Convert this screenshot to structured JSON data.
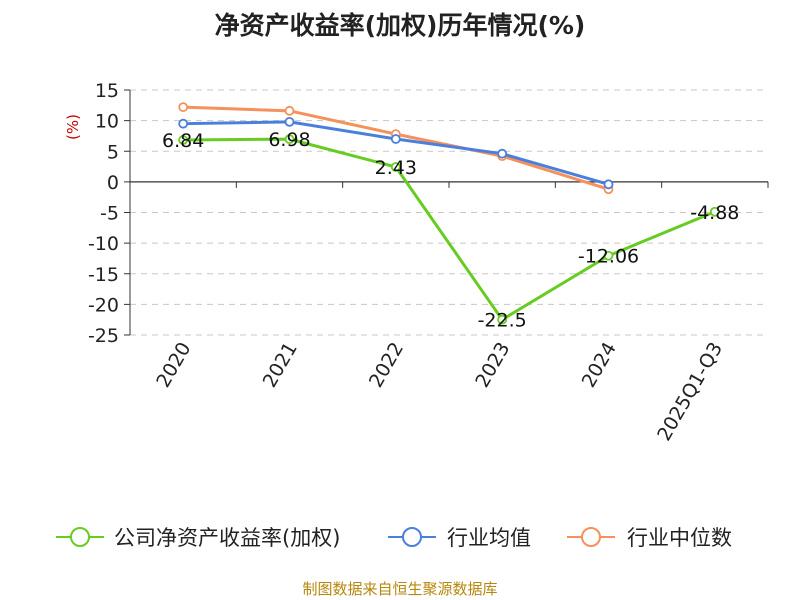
{
  "title": "净资产收益率(加权)历年情况(%)",
  "source": "制图数据来自恒生聚源数据库",
  "chart_data": {
    "type": "line",
    "ylabel": "(%)",
    "ylim": [
      -25,
      15
    ],
    "yticks": [
      15,
      10,
      5,
      0,
      -5,
      -10,
      -15,
      -20,
      -25
    ],
    "categories": [
      "2020",
      "2021",
      "2022",
      "2023",
      "2024",
      "2025Q1-Q3"
    ],
    "grid": true,
    "legend_position": "bottom",
    "series": [
      {
        "name": "公司净资产收益率(加权)",
        "color": "#66cc22",
        "values": [
          6.84,
          6.98,
          2.43,
          -22.5,
          -12.06,
          -4.88
        ],
        "labels": [
          "6.84",
          "6.98",
          "2.43",
          "-22.5",
          "-12.06",
          "-4.88"
        ]
      },
      {
        "name": "行业均值",
        "color": "#4a7fdc",
        "values": [
          9.5,
          9.8,
          7.0,
          4.6,
          -0.4,
          null
        ]
      },
      {
        "name": "行业中位数",
        "color": "#f5915a",
        "values": [
          12.2,
          11.6,
          7.8,
          4.2,
          -1.2,
          null
        ]
      }
    ]
  }
}
